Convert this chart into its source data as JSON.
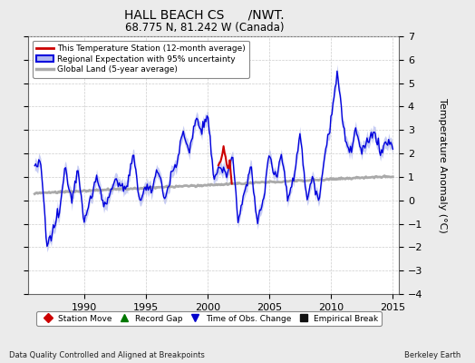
{
  "title": "HALL BEACH CS      /NWT.",
  "subtitle": "68.775 N, 81.242 W (Canada)",
  "ylabel": "Temperature Anomaly (°C)",
  "xlim": [
    1985.5,
    2015.5
  ],
  "ylim": [
    -4,
    7
  ],
  "yticks": [
    -4,
    -3,
    -2,
    -1,
    0,
    1,
    2,
    3,
    4,
    5,
    6,
    7
  ],
  "xticks": [
    1990,
    1995,
    2000,
    2005,
    2010,
    2015
  ],
  "footer_left": "Data Quality Controlled and Aligned at Breakpoints",
  "footer_right": "Berkeley Earth",
  "bg_color": "#ebebeb",
  "plot_bg_color": "#ffffff",
  "regional_color": "#0000dd",
  "regional_uncertainty_color": "#b0b8f0",
  "station_color": "#cc0000",
  "global_color": "#aaaaaa",
  "legend_items": [
    "This Temperature Station (12-month average)",
    "Regional Expectation with 95% uncertainty",
    "Global Land (5-year average)"
  ],
  "marker_items": [
    {
      "label": "Station Move",
      "color": "#cc0000",
      "marker": "D"
    },
    {
      "label": "Record Gap",
      "color": "#007700",
      "marker": "^"
    },
    {
      "label": "Time of Obs. Change",
      "color": "#0000cc",
      "marker": "v"
    },
    {
      "label": "Empirical Break",
      "color": "#111111",
      "marker": "s"
    }
  ]
}
